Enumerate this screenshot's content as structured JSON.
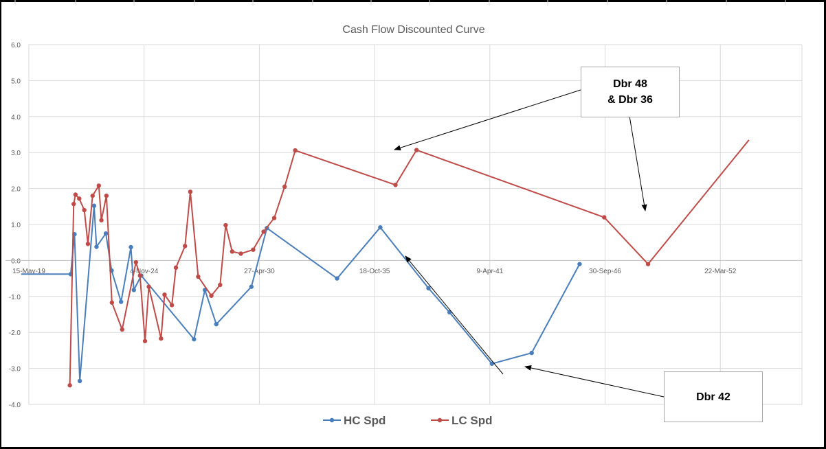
{
  "chart_data": {
    "type": "line",
    "title": "Cash Flow Discounted Curve",
    "x_axis": {
      "type": "date",
      "tick_labels": [
        "15-May-19",
        "4-Nov-24",
        "27-Apr-30",
        "18-Oct-35",
        "9-Apr-41",
        "30-Sep-46",
        "22-Mar-52"
      ],
      "range": [
        "2019-05-15",
        "2053-08-01"
      ]
    },
    "y_axis": {
      "tick_labels": [
        "6.0",
        "5.0",
        "4.0",
        "3.0",
        "2.0",
        "1.0",
        "0.0",
        "-1.0",
        "-2.0",
        "-3.0",
        "-4.0"
      ],
      "ylim": [
        -4.0,
        6.0
      ]
    },
    "grid": true,
    "legend_position": "bottom",
    "series": [
      {
        "name": "HC Spd",
        "color": "#4a7ebb",
        "points": [
          [
            "2019-01-01",
            -0.38
          ],
          [
            "2021-05-10",
            -0.38
          ],
          [
            "2021-07-15",
            0.73
          ],
          [
            "2021-10-15",
            -3.35
          ],
          [
            "2022-06-20",
            1.52
          ],
          [
            "2022-08-01",
            0.38
          ],
          [
            "2023-01-10",
            0.75
          ],
          [
            "2023-04-20",
            -0.28
          ],
          [
            "2023-10-01",
            -1.15
          ],
          [
            "2024-03-20",
            0.37
          ],
          [
            "2024-05-10",
            -0.82
          ],
          [
            "2024-09-15",
            -0.42
          ],
          [
            "2027-03-20",
            -2.19
          ],
          [
            "2027-09-25",
            -0.82
          ],
          [
            "2028-04-10",
            -1.77
          ],
          [
            "2029-12-10",
            -0.73
          ],
          [
            "2030-09-05",
            0.9
          ],
          [
            "2034-01-05",
            -0.5
          ],
          [
            "2036-01-25",
            0.92
          ],
          [
            "2038-05-10",
            -0.77
          ],
          [
            "2039-05-10",
            -1.44
          ],
          [
            "2041-05-15",
            -2.87
          ],
          [
            "2043-04-05",
            -2.57
          ],
          [
            "2045-07-15",
            -0.1
          ]
        ]
      },
      {
        "name": "LC Spd",
        "color": "#be4b48",
        "points": [
          [
            "2021-04-25",
            -3.47
          ],
          [
            "2021-07-01",
            1.57
          ],
          [
            "2021-08-01",
            1.83
          ],
          [
            "2021-10-05",
            1.72
          ],
          [
            "2022-01-01",
            1.4
          ],
          [
            "2022-03-05",
            0.46
          ],
          [
            "2022-05-25",
            1.8
          ],
          [
            "2022-09-10",
            2.08
          ],
          [
            "2022-10-25",
            1.12
          ],
          [
            "2023-01-20",
            1.8
          ],
          [
            "2023-04-25",
            -1.17
          ],
          [
            "2023-10-20",
            -1.92
          ],
          [
            "2024-06-15",
            -0.05
          ],
          [
            "2024-08-25",
            -0.42
          ],
          [
            "2024-11-20",
            -2.24
          ],
          [
            "2025-01-25",
            -0.73
          ],
          [
            "2025-08-25",
            -2.17
          ],
          [
            "2025-10-25",
            -0.95
          ],
          [
            "2026-03-01",
            -1.24
          ],
          [
            "2026-05-10",
            -0.2
          ],
          [
            "2026-10-15",
            0.4
          ],
          [
            "2027-01-15",
            1.91
          ],
          [
            "2027-06-01",
            -0.45
          ],
          [
            "2028-01-15",
            -0.98
          ],
          [
            "2028-06-15",
            -0.68
          ],
          [
            "2028-09-20",
            0.98
          ],
          [
            "2029-01-10",
            0.25
          ],
          [
            "2029-06-10",
            0.19
          ],
          [
            "2030-01-10",
            0.3
          ],
          [
            "2030-07-10",
            0.8
          ],
          [
            "2031-01-10",
            1.18
          ],
          [
            "2031-07-10",
            2.05
          ],
          [
            "2032-01-10",
            3.06
          ],
          [
            "2036-10-15",
            2.1
          ],
          [
            "2037-10-15",
            3.07
          ],
          [
            "2046-09-15",
            1.2
          ],
          [
            "2048-10-15",
            -0.1
          ],
          [
            "2053-08-01",
            3.35
          ]
        ]
      }
    ],
    "annotations": [
      {
        "lines": [
          "Dbr 48",
          "& Dbr 36"
        ]
      },
      {
        "lines": [
          "Dbr 42"
        ]
      }
    ]
  }
}
